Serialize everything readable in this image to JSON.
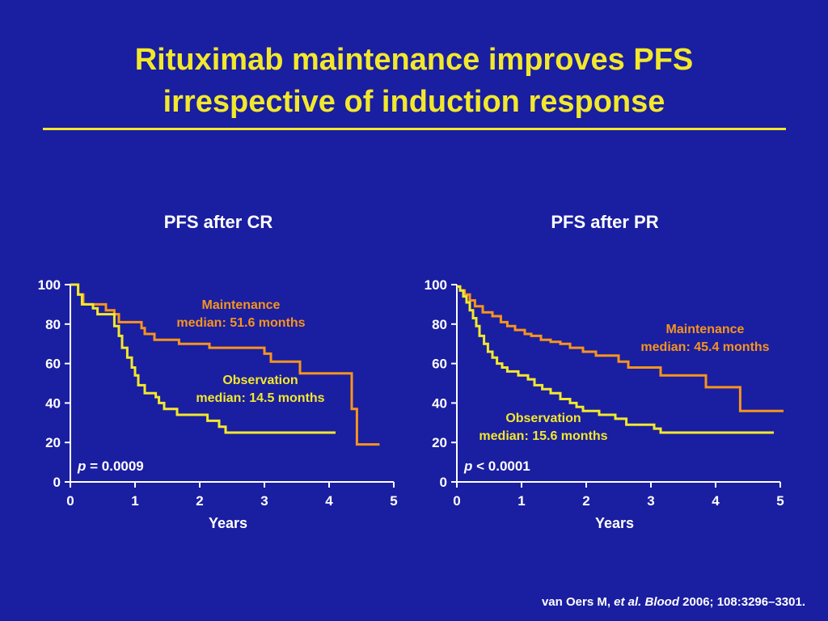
{
  "title_line1": "Rituximab maintenance improves PFS",
  "title_line2": "irrespective of induction response",
  "colors": {
    "background": "#1a1ea0",
    "title": "#f2e82c",
    "maintenance": "#f7941d",
    "observation": "#f2e82c",
    "text": "#ffffff"
  },
  "citation": {
    "author": "van Oers M, ",
    "etal": "et al. Blood",
    "rest": " 2006; 108:3296–3301."
  },
  "chart_data": [
    {
      "type": "line",
      "title": "PFS after CR",
      "xlabel": "Years",
      "ylabel": "",
      "xlim": [
        0,
        5
      ],
      "ylim": [
        0,
        100
      ],
      "xticks": [
        "0",
        "1",
        "2",
        "3",
        "4",
        "5"
      ],
      "yticks": [
        "0",
        "20",
        "40",
        "60",
        "80",
        "100"
      ],
      "p_label": "p",
      "p_value": " = 0.0009",
      "series": [
        {
          "key": "maintenance",
          "label_line1": "Maintenance",
          "label_line2": "median: 51.6 months",
          "x": [
            0,
            0.12,
            0.12,
            0.2,
            0.2,
            0.55,
            0.55,
            0.68,
            0.68,
            0.75,
            0.75,
            1.1,
            1.1,
            1.15,
            1.15,
            1.3,
            1.3,
            1.68,
            1.68,
            2.15,
            2.15,
            3.0,
            3.0,
            3.1,
            3.1,
            3.55,
            3.55,
            4.35,
            4.35,
            4.43,
            4.43,
            4.78
          ],
          "y": [
            100,
            100,
            95,
            95,
            90,
            90,
            87,
            87,
            85,
            85,
            81,
            81,
            78,
            78,
            75,
            75,
            72,
            72,
            70,
            70,
            68,
            68,
            65,
            65,
            61,
            61,
            55,
            55,
            37,
            37,
            19,
            19
          ]
        },
        {
          "key": "observation",
          "label_line1": "Observation",
          "label_line2": "median: 14.5 months",
          "x": [
            0,
            0.12,
            0.12,
            0.18,
            0.18,
            0.35,
            0.35,
            0.42,
            0.42,
            0.68,
            0.68,
            0.75,
            0.75,
            0.8,
            0.8,
            0.88,
            0.88,
            0.95,
            0.95,
            1.0,
            1.0,
            1.05,
            1.05,
            1.15,
            1.15,
            1.32,
            1.32,
            1.37,
            1.37,
            1.45,
            1.45,
            1.65,
            1.65,
            2.12,
            2.12,
            2.3,
            2.3,
            2.4,
            2.4,
            4.1
          ],
          "y": [
            100,
            100,
            95,
            95,
            90,
            90,
            88,
            88,
            85,
            85,
            79,
            79,
            74,
            74,
            68,
            68,
            63,
            63,
            58,
            58,
            54,
            54,
            49,
            49,
            45,
            45,
            43,
            43,
            40,
            40,
            37,
            37,
            34,
            34,
            31,
            31,
            28,
            28,
            25,
            25
          ]
        }
      ]
    },
    {
      "type": "line",
      "title": "PFS after PR",
      "xlabel": "Years",
      "ylabel": "",
      "xlim": [
        0,
        5
      ],
      "ylim": [
        0,
        100
      ],
      "xticks": [
        "0",
        "1",
        "2",
        "3",
        "4",
        "5"
      ],
      "yticks": [
        "0",
        "20",
        "40",
        "60",
        "80",
        "100"
      ],
      "p_label": "p",
      "p_value": " < 0.0001",
      "series": [
        {
          "key": "maintenance",
          "label_line1": "Maintenance",
          "label_line2": "median: 45.4 months",
          "x": [
            0,
            0.05,
            0.05,
            0.12,
            0.12,
            0.2,
            0.2,
            0.28,
            0.28,
            0.4,
            0.4,
            0.55,
            0.55,
            0.68,
            0.68,
            0.78,
            0.78,
            0.9,
            0.9,
            1.05,
            1.05,
            1.15,
            1.15,
            1.3,
            1.3,
            1.45,
            1.45,
            1.6,
            1.6,
            1.75,
            1.75,
            1.95,
            1.95,
            2.15,
            2.15,
            2.5,
            2.5,
            2.65,
            2.65,
            3.15,
            3.15,
            3.85,
            3.85,
            4.38,
            4.38,
            5.05
          ],
          "y": [
            99,
            99,
            97,
            97,
            95,
            95,
            92,
            92,
            89,
            89,
            86,
            86,
            84,
            84,
            81,
            81,
            79,
            79,
            77,
            77,
            75,
            75,
            74,
            74,
            72,
            72,
            71,
            71,
            70,
            70,
            68,
            68,
            66,
            66,
            64,
            64,
            61,
            61,
            58,
            58,
            54,
            54,
            48,
            48,
            36,
            36
          ]
        },
        {
          "key": "observation",
          "label_line1": "Observation",
          "label_line2": "median: 15.6 months",
          "x": [
            0,
            0.05,
            0.05,
            0.1,
            0.1,
            0.15,
            0.15,
            0.2,
            0.2,
            0.25,
            0.25,
            0.3,
            0.3,
            0.35,
            0.35,
            0.42,
            0.42,
            0.48,
            0.48,
            0.55,
            0.55,
            0.62,
            0.62,
            0.7,
            0.7,
            0.78,
            0.78,
            0.95,
            0.95,
            1.1,
            1.1,
            1.2,
            1.2,
            1.32,
            1.32,
            1.45,
            1.45,
            1.6,
            1.6,
            1.75,
            1.75,
            1.85,
            1.85,
            1.95,
            1.95,
            2.2,
            2.2,
            2.45,
            2.45,
            2.62,
            2.62,
            3.05,
            3.05,
            3.15,
            3.15,
            4.9
          ],
          "y": [
            99,
            99,
            97,
            97,
            94,
            94,
            91,
            91,
            87,
            87,
            83,
            83,
            79,
            79,
            74,
            74,
            70,
            70,
            66,
            66,
            63,
            63,
            60,
            60,
            58,
            58,
            56,
            56,
            54,
            54,
            52,
            52,
            49,
            49,
            47,
            47,
            45,
            45,
            42,
            42,
            40,
            40,
            38,
            38,
            36,
            36,
            34,
            34,
            32,
            32,
            29,
            29,
            27,
            27,
            25,
            25
          ]
        }
      ]
    }
  ]
}
